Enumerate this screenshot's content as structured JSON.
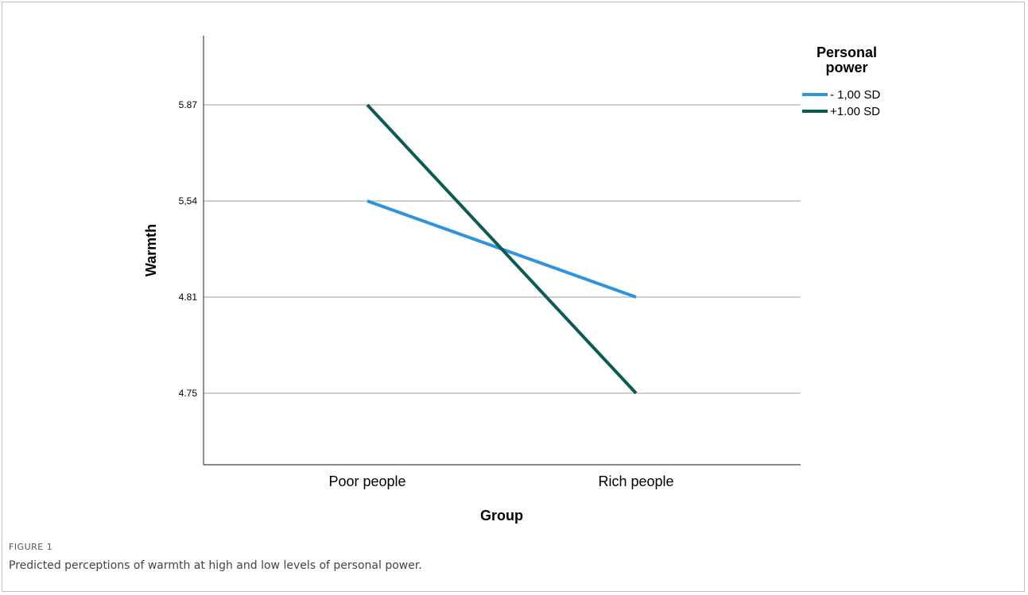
{
  "figure": {
    "label": "FIGURE 1",
    "caption": "Predicted perceptions of warmth at high and low levels of personal power."
  },
  "chart_data": {
    "type": "line",
    "categories": [
      "Poor people",
      "Rich people"
    ],
    "xlabel": "Group",
    "ylabel": "Warmth",
    "y_ticks": [
      "5.87",
      "5,54",
      "4.81",
      "4.75"
    ],
    "grid": true,
    "legend": {
      "title": "Personal power",
      "placement": "top-right"
    },
    "series": [
      {
        "name": "- 1,00 SD",
        "color": "#2f94e0",
        "values": [
          "5,54",
          "4.81"
        ]
      },
      {
        "name": "+1.00 SD",
        "color": "#0d5a55",
        "values": [
          "5.87",
          "4.75"
        ]
      }
    ]
  }
}
